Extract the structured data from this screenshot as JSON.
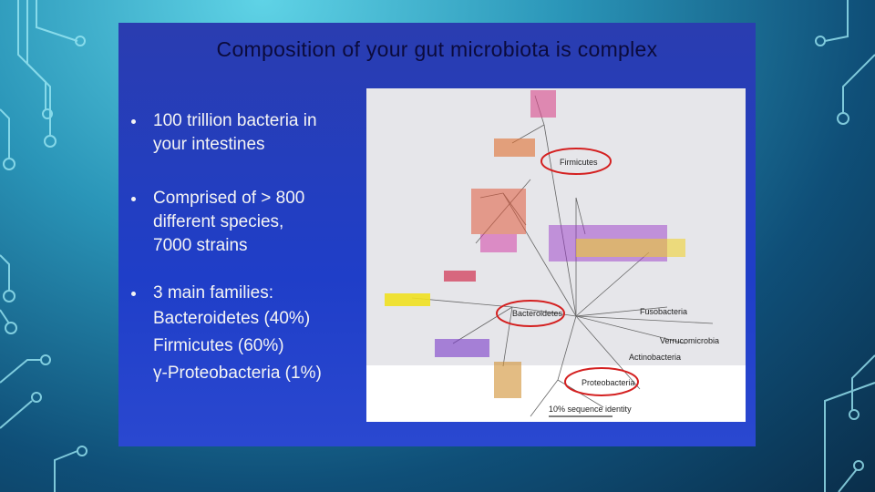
{
  "slide": {
    "title": "Composition of your gut microbiota is complex",
    "bullets": [
      {
        "lines": [
          "100 trillion bacteria in",
          "your intestines"
        ]
      },
      {
        "lines": [
          "Comprised of > 800",
          "different species,",
          "7000 strains"
        ]
      },
      {
        "lines": [
          "3 main families:",
          "Bacteroidetes (40%)",
          "Firmicutes (60%)",
          "γ-Proteobacteria (1%)"
        ]
      }
    ],
    "figure": {
      "labels": [
        "Firmicutes",
        "Bacteroidetes",
        "Proteobacteria",
        "Fusobacteria",
        "Verrucomicrobia",
        "Actinobacteria"
      ],
      "scale_label": "10% sequence identity"
    }
  }
}
